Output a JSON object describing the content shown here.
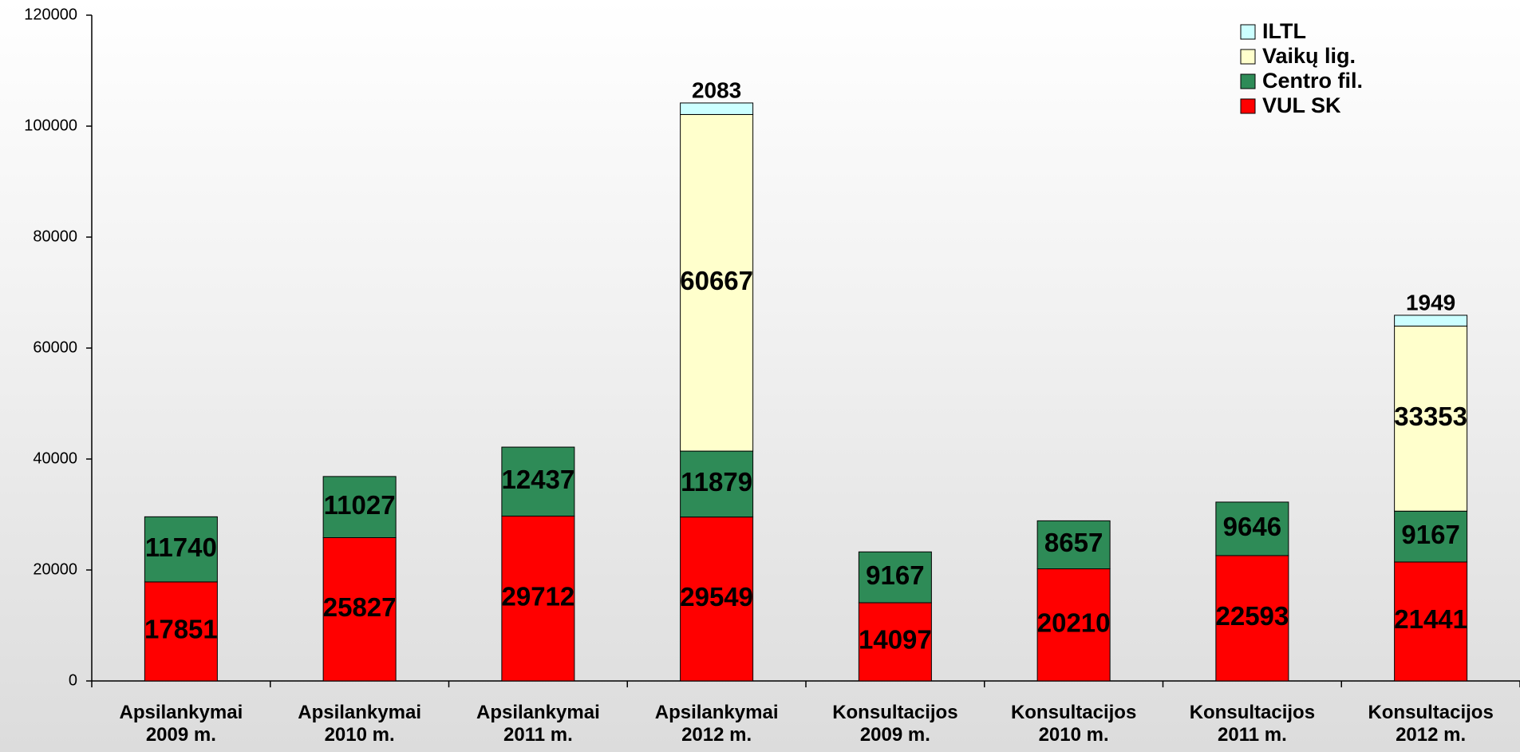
{
  "chart_data": {
    "type": "stacked_bar",
    "categories": [
      "Apsilankymai\n2009 m.",
      "Apsilankymai\n2010 m.",
      "Apsilankymai\n2011 m.",
      "Apsilankymai\n2012 m.",
      "Konsultacijos\n2009 m.",
      "Konsultacijos\n2010 m.",
      "Konsultacijos\n2011 m.",
      "Konsultacijos\n2012 m."
    ],
    "series": [
      {
        "name": "VUL SK",
        "color": "#ff0000",
        "values": [
          17851,
          25827,
          29712,
          29549,
          14097,
          20210,
          22593,
          21441
        ]
      },
      {
        "name": "Centro fil.",
        "color": "#2e8b57",
        "values": [
          11740,
          11027,
          12437,
          11879,
          9167,
          8657,
          9646,
          9167
        ]
      },
      {
        "name": "Vaikų lig.",
        "color": "#ffffcc",
        "values": [
          null,
          null,
          null,
          60667,
          null,
          null,
          null,
          33353
        ]
      },
      {
        "name": "ILTL",
        "color": "#ccffff",
        "values": [
          null,
          null,
          null,
          2083,
          null,
          null,
          null,
          1949
        ]
      }
    ],
    "ylim": [
      0,
      120000
    ],
    "yticks": [
      0,
      20000,
      40000,
      60000,
      80000,
      100000,
      120000
    ],
    "legend": "upper right"
  }
}
